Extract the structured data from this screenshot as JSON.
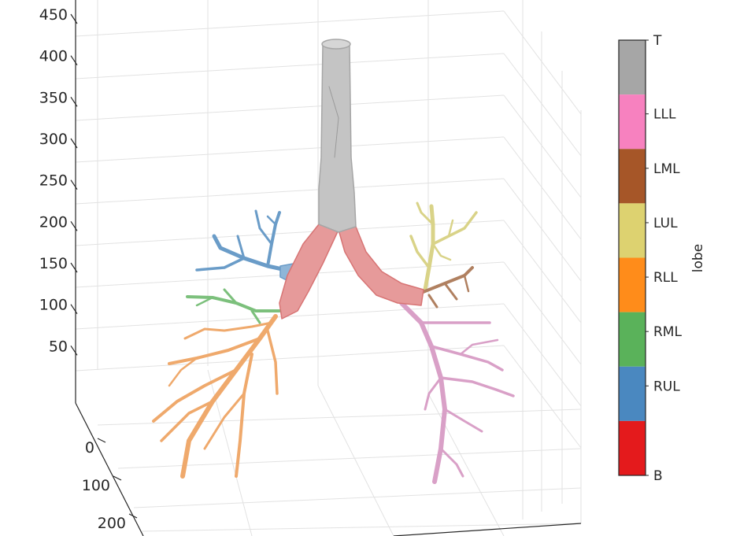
{
  "chart_data": {
    "type": "3d-surface",
    "z_axis": {
      "ticks": [
        50,
        100,
        150,
        200,
        250,
        300,
        350,
        400,
        450
      ]
    },
    "y_axis": {
      "ticks": [
        0,
        100,
        200
      ]
    },
    "grid": "on",
    "colorbar": {
      "title": "lobe",
      "placement": "right",
      "categories": [
        {
          "label": "T",
          "color": "#A6A6A6"
        },
        {
          "label": "LLL",
          "color": "#F781BF"
        },
        {
          "label": "LML",
          "color": "#A65628"
        },
        {
          "label": "LUL",
          "color": "#DDD270"
        },
        {
          "label": "RLL",
          "color": "#FF8C1A"
        },
        {
          "label": "RML",
          "color": "#5AB25A"
        },
        {
          "label": "RUL",
          "color": "#4A88C0"
        },
        {
          "label": "B",
          "color": "#E41A1C"
        }
      ]
    },
    "segments": [
      {
        "lobe": "T"
      },
      {
        "lobe": "B"
      },
      {
        "lobe": "RUL"
      },
      {
        "lobe": "RML"
      },
      {
        "lobe": "RLL"
      },
      {
        "lobe": "LUL"
      },
      {
        "lobe": "LML"
      },
      {
        "lobe": "LLL"
      }
    ]
  }
}
